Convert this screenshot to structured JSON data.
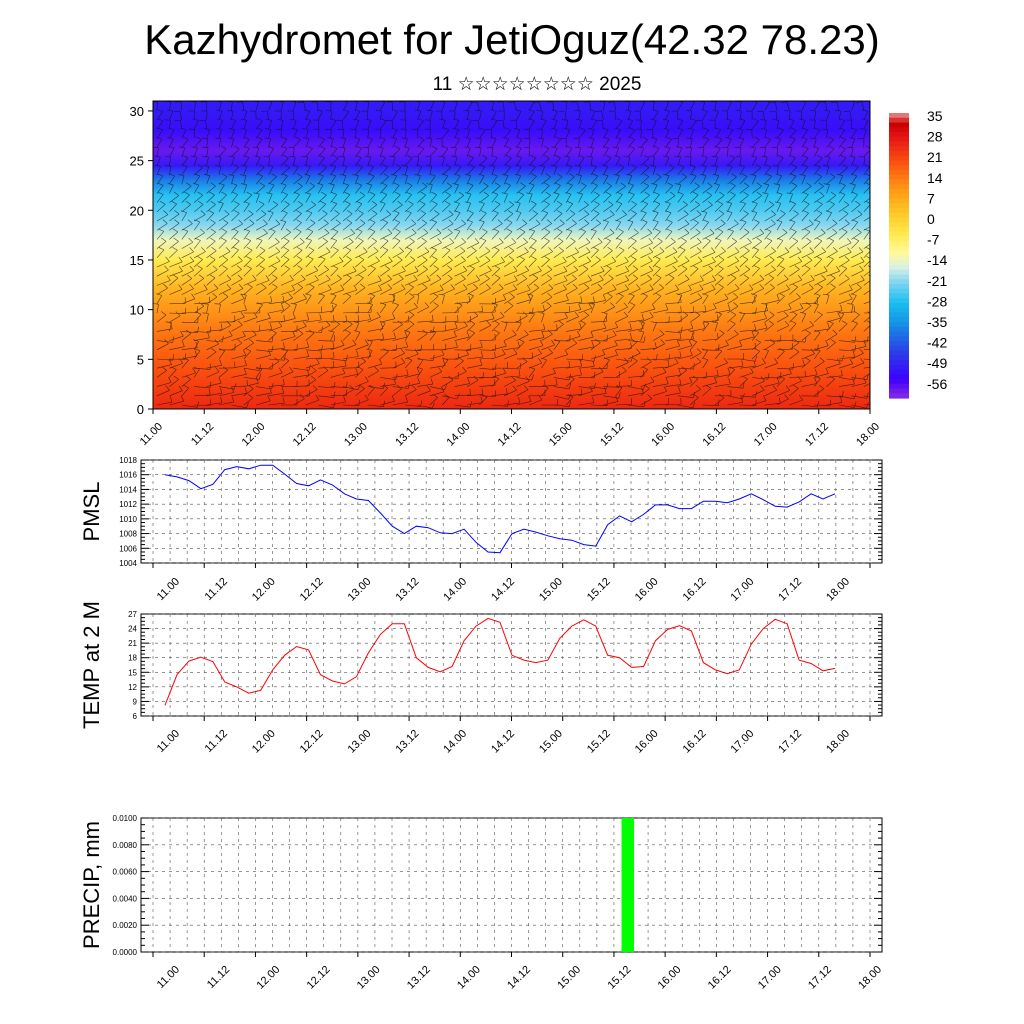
{
  "title": "Kazhydromet for JetiOguz(42.32 78.23)",
  "subtitle": "11 ☆☆☆☆☆☆☆☆ 2025",
  "time_labels": [
    "11.00",
    "11.12",
    "12.00",
    "12.12",
    "13.00",
    "13.12",
    "14.00",
    "14.12",
    "15.00",
    "15.12",
    "16.00",
    "16.12",
    "17.00",
    "17.12",
    "18.00"
  ],
  "chart_data": [
    {
      "id": "cross_section",
      "type": "heatmap",
      "y_ticks": [
        0,
        5,
        10,
        15,
        20,
        25,
        30
      ],
      "ylim": [
        0,
        31
      ],
      "colorbar_labels": [
        "35",
        "28",
        "21",
        "14",
        "7",
        "0",
        "-7",
        "-14",
        "-21",
        "-28",
        "-35",
        "-42",
        "-49",
        "-56"
      ],
      "colorbar_range": [
        -63,
        42
      ],
      "temperature_profile": [
        {
          "level": 0,
          "value": 30
        },
        {
          "level": 4,
          "value": 24
        },
        {
          "level": 8,
          "value": 18
        },
        {
          "level": 12,
          "value": 9
        },
        {
          "level": 15,
          "value": -3
        },
        {
          "level": 17,
          "value": -12
        },
        {
          "level": 18.5,
          "value": -20
        },
        {
          "level": 20,
          "value": -24
        },
        {
          "level": 21.5,
          "value": -27
        },
        {
          "level": 23,
          "value": -38
        },
        {
          "level": 24.5,
          "value": -52
        },
        {
          "level": 26,
          "value": -60
        },
        {
          "level": 28,
          "value": -54
        },
        {
          "level": 30,
          "value": -52
        },
        {
          "level": 31,
          "value": -52
        }
      ],
      "overlay": "wind barbs"
    },
    {
      "id": "pmsl",
      "type": "line",
      "ylabel": "PMSL",
      "ylim": [
        1004,
        1018
      ],
      "y_ticks": [
        1004,
        1006,
        1008,
        1010,
        1012,
        1014,
        1016,
        1018
      ],
      "color": "#0000ff",
      "values": [
        1016.0,
        1015.7,
        1015.2,
        1014.1,
        1014.7,
        1016.7,
        1017.1,
        1016.8,
        1017.3,
        1017.3,
        1016.1,
        1014.8,
        1014.5,
        1015.3,
        1014.6,
        1013.4,
        1012.7,
        1012.5,
        1010.8,
        1009.0,
        1008.0,
        1009.0,
        1008.8,
        1008.1,
        1008.0,
        1008.6,
        1006.8,
        1005.5,
        1005.4,
        1008.0,
        1008.6,
        1008.2,
        1007.7,
        1007.3,
        1007.1,
        1006.5,
        1006.3,
        1009.2,
        1010.4,
        1009.6,
        1010.6,
        1011.9,
        1011.9,
        1011.4,
        1011.4,
        1012.4,
        1012.4,
        1012.2,
        1012.7,
        1013.4,
        1012.6,
        1011.7,
        1011.6,
        1012.3,
        1013.4,
        1012.7,
        1013.4
      ]
    },
    {
      "id": "temp2m",
      "type": "line",
      "ylabel": "TEMP at 2 M",
      "ylim": [
        6,
        27
      ],
      "y_ticks": [
        6,
        9,
        12,
        15,
        18,
        21,
        24,
        27
      ],
      "color": "#ff0000",
      "values": [
        8.2,
        14.5,
        17.3,
        18.1,
        17.2,
        13.0,
        12.0,
        10.7,
        11.3,
        15.5,
        18.5,
        20.3,
        19.6,
        14.5,
        13.2,
        12.6,
        14.1,
        19.0,
        22.8,
        25.0,
        25.0,
        18.0,
        16.0,
        15.1,
        16.2,
        21.5,
        24.5,
        26.1,
        25.3,
        18.5,
        17.5,
        17.0,
        17.5,
        22.0,
        24.5,
        25.8,
        24.5,
        18.5,
        18.0,
        16.0,
        16.2,
        21.5,
        23.8,
        24.6,
        23.5,
        17.0,
        15.5,
        14.7,
        15.5,
        20.8,
        24.0,
        25.9,
        25.0,
        17.5,
        16.8,
        15.3,
        15.8
      ]
    },
    {
      "id": "precip",
      "type": "bar",
      "ylabel": "PRECIP, mm",
      "ylim": [
        0,
        0.01
      ],
      "y_ticks": [
        "0.0000",
        "0.0020",
        "0.0040",
        "0.0060",
        "0.0080",
        "0.0100"
      ],
      "color": "#00ff00",
      "bars": [
        {
          "x_hours": 111,
          "width_hours": 3,
          "value": 0.01
        }
      ]
    }
  ]
}
